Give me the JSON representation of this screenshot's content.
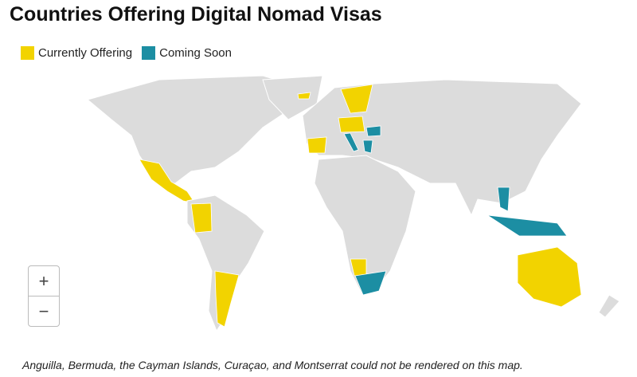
{
  "title": "Countries Offering Digital Nomad Visas",
  "legend": [
    {
      "label": "Currently Offering",
      "color": "#f2d300"
    },
    {
      "label": "Coming Soon",
      "color": "#1c8ea3"
    }
  ],
  "zoom": {
    "in": "+",
    "out": "−"
  },
  "note": "Anguilla, Bermuda, the Cayman Islands, Curaçao, and Montserrat could not be rendered on this map."
}
